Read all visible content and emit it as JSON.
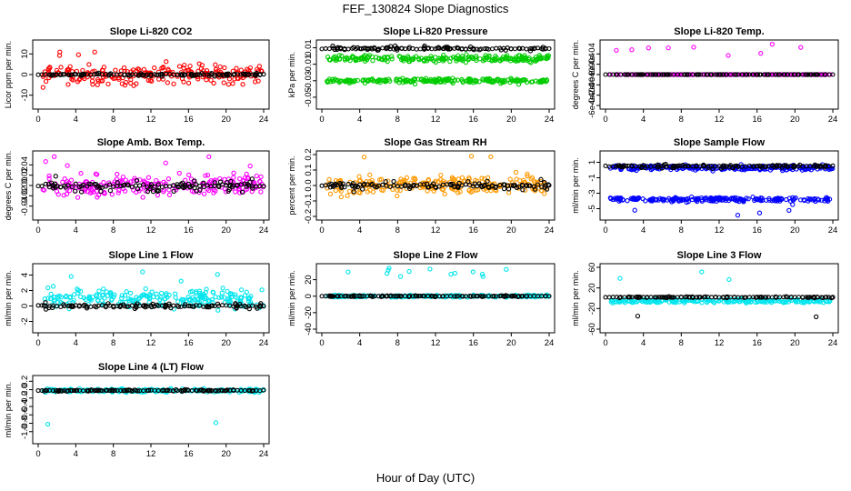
{
  "title": "FEF_130824  Slope Diagnostics",
  "xlabel": "Hour of Day (UTC)",
  "chart_data": [
    {
      "type": "scatter",
      "title": "Slope Li-820 CO2",
      "ylabel": "Licor ppm per min.",
      "xlim": [
        0,
        24
      ],
      "ylim": [
        -15,
        15
      ],
      "xticks": [
        0,
        4,
        8,
        12,
        16,
        20,
        24
      ],
      "yticks": [
        -10,
        0,
        10
      ],
      "series": [
        {
          "color": "#ff0000",
          "center": 0,
          "spread": 7,
          "spike": 15,
          "offset": 0
        },
        {
          "color": "#000000",
          "center": 0,
          "spread": 1,
          "spike": 0,
          "offset": 0
        }
      ]
    },
    {
      "type": "scatter",
      "title": "Slope Li-820 Pressure",
      "ylabel": "kPa per min.",
      "xlim": [
        0,
        24
      ],
      "ylim": [
        -0.06,
        0.015
      ],
      "xticks": [
        0,
        4,
        8,
        12,
        16,
        20,
        24
      ],
      "yticks": [
        0.01,
        -0.01,
        -0.03,
        -0.05
      ],
      "series": [
        {
          "color": "#00cc00",
          "center": -0.03,
          "spread": 0.004,
          "spike": -0.055,
          "offset": 0
        },
        {
          "color": "#00cc00",
          "center": -0.003,
          "spread": 0.006,
          "spike": 0,
          "offset": 0
        },
        {
          "color": "#000000",
          "center": 0.009,
          "spread": 0.004,
          "spike": 0,
          "offset": 0
        }
      ]
    },
    {
      "type": "scatter",
      "title": "Slope Li-820 Temp.",
      "ylabel": "degrees C per min.",
      "xlim": [
        0,
        24
      ],
      "ylim": [
        -0.0006,
        0.0006
      ],
      "xticks": [
        0,
        4,
        8,
        12,
        16,
        20,
        24
      ],
      "yticks": [
        0.0004,
        0.0002,
        0,
        -0.0002,
        -0.0004,
        -0.0006
      ],
      "yticklabels": [
        "4e-04",
        "2e-04",
        "0e+00",
        "-2e-04",
        "-4e-04",
        "-6e-04"
      ],
      "series": [
        {
          "color": "#ff00ff",
          "center": 0,
          "spread": 0,
          "spike": 0.0006,
          "offset": 0
        },
        {
          "color": "#000000",
          "center": 0,
          "spread": 0,
          "spike": 0,
          "offset": 0
        }
      ]
    },
    {
      "type": "scatter",
      "title": "Slope Amb. Box Temp.",
      "ylabel": "degrees C per min.",
      "xlim": [
        0,
        24
      ],
      "ylim": [
        -0.06,
        0.06
      ],
      "xticks": [
        0,
        4,
        8,
        12,
        16,
        20,
        24
      ],
      "yticks": [
        -0.04,
        -0.02,
        0,
        0.02,
        0.04
      ],
      "yticklabels": [
        "-0.04",
        "-0.02",
        "0.00",
        "0.02",
        "0.04"
      ],
      "series": [
        {
          "color": "#ff00ff",
          "center": 0,
          "spread": 0.03,
          "spike": 0.06,
          "offset": 0
        },
        {
          "color": "#000000",
          "center": 0,
          "spread": 0.02,
          "spike": 0,
          "offset": 0
        }
      ]
    },
    {
      "type": "scatter",
      "title": "Slope Gas Stream RH",
      "ylabel": "percent per min.",
      "xlim": [
        0,
        24
      ],
      "ylim": [
        -0.2,
        0.2
      ],
      "xticks": [
        0,
        4,
        8,
        12,
        16,
        20,
        24
      ],
      "yticks": [
        -0.2,
        -0.1,
        0,
        0.1,
        0.2
      ],
      "yticklabels": [
        "-0.2",
        "-0.1",
        "0.0",
        "0.1",
        "0.2"
      ],
      "series": [
        {
          "color": "#ff9900",
          "center": 0,
          "spread": 0.09,
          "spike": 0.2,
          "offset": 0
        },
        {
          "color": "#000000",
          "center": 0,
          "spread": 0.05,
          "spike": 0,
          "offset": 0
        }
      ]
    },
    {
      "type": "scatter",
      "title": "Slope Sample Flow",
      "ylabel": "ml/min per min.",
      "xlim": [
        0,
        24
      ],
      "ylim": [
        -6,
        2
      ],
      "xticks": [
        0,
        4,
        8,
        12,
        16,
        20,
        24
      ],
      "yticks": [
        1,
        -1,
        -3,
        -5
      ],
      "series": [
        {
          "color": "#0000ff",
          "center": 0.3,
          "spread": 0.5,
          "spike": 0,
          "offset": 0
        },
        {
          "color": "#0000ff",
          "center": -3.8,
          "spread": 0.4,
          "spike": -6,
          "offset": 0
        },
        {
          "color": "#000000",
          "center": 0.5,
          "spread": 0.4,
          "spike": 0,
          "offset": 0
        }
      ]
    },
    {
      "type": "scatter",
      "title": "Slope Line 1 Flow",
      "ylabel": "ml/min per min.",
      "xlim": [
        0,
        24
      ],
      "ylim": [
        -3,
        5
      ],
      "xticks": [
        0,
        4,
        8,
        12,
        16,
        20,
        24
      ],
      "yticks": [
        -2,
        0,
        2,
        4
      ],
      "series": [
        {
          "color": "#00e5ee",
          "center": 1,
          "spread": 2,
          "spike": 5,
          "offset": 0
        },
        {
          "color": "#000000",
          "center": 0,
          "spread": 0.5,
          "spike": 0,
          "offset": 0
        }
      ]
    },
    {
      "type": "scatter",
      "title": "Slope Line 2 Flow",
      "ylabel": "ml/min per min.",
      "xlim": [
        0,
        24
      ],
      "ylim": [
        -40,
        35
      ],
      "xticks": [
        0,
        4,
        8,
        12,
        16,
        20,
        24
      ],
      "yticks": [
        -40,
        -20,
        0,
        20
      ],
      "series": [
        {
          "color": "#00e5ee",
          "center": 0,
          "spread": 2,
          "spike": 35,
          "offset": 0
        },
        {
          "color": "#000000",
          "center": 0,
          "spread": 1,
          "spike": -30,
          "offset": 0
        }
      ]
    },
    {
      "type": "scatter",
      "title": "Slope Line 3 Flow",
      "ylabel": "ml/min per min.",
      "xlim": [
        0,
        24
      ],
      "ylim": [
        -60,
        60
      ],
      "xticks": [
        0,
        4,
        8,
        12,
        16,
        20,
        24
      ],
      "yticks": [
        -60,
        -20,
        20,
        60
      ],
      "series": [
        {
          "color": "#00e5ee",
          "center": -5,
          "spread": 6,
          "spike": 55,
          "offset": 0
        },
        {
          "color": "#000000",
          "center": 2,
          "spread": 2,
          "spike": -40,
          "offset": 0
        }
      ]
    },
    {
      "type": "scatter",
      "title": "Slope Line 4 (LT) Flow",
      "ylabel": "ml/min per min.",
      "xlim": [
        0,
        24
      ],
      "ylim": [
        -1.2,
        0.25
      ],
      "xticks": [
        0,
        4,
        8,
        12,
        16,
        20,
        24
      ],
      "yticks": [
        0.2,
        0,
        -0.2,
        -0.4,
        -0.6,
        -0.8,
        -1
      ],
      "yticklabels": [
        "0.2",
        "0.0",
        "-0.2",
        "-0.4",
        "-0.6",
        "-0.8",
        "-1.0"
      ],
      "series": [
        {
          "color": "#00e5ee",
          "center": -0.02,
          "spread": 0.06,
          "spike": -1.15,
          "offset": 0
        },
        {
          "color": "#000000",
          "center": -0.02,
          "spread": 0.03,
          "spike": 0,
          "offset": 0
        }
      ]
    }
  ]
}
